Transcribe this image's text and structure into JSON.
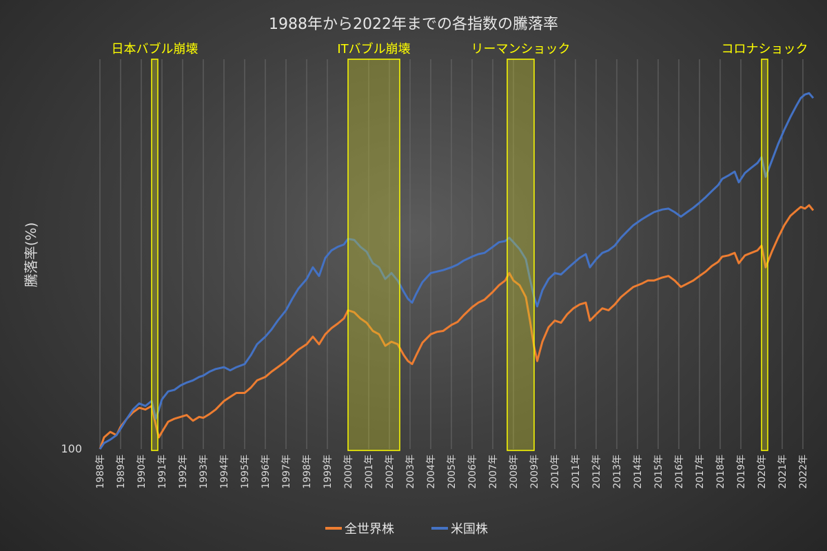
{
  "chart_data": {
    "type": "line",
    "title": "1988年から2022年までの各指数の騰落率",
    "ylabel": "騰落率(%)",
    "xlabel": "",
    "y_scale": "log",
    "y_tick_labels": [
      "100"
    ],
    "x_range": [
      1988.0,
      2022.6
    ],
    "ylim": [
      100,
      2400
    ],
    "x_tick_labels": [
      "1988年",
      "1989年",
      "1990年",
      "1991年",
      "1992年",
      "1993年",
      "1994年",
      "1995年",
      "1996年",
      "1997年",
      "1998年",
      "1999年",
      "2000年",
      "2001年",
      "2002年",
      "2003年",
      "2004年",
      "2005年",
      "2006年",
      "2007年",
      "2008年",
      "2009年",
      "2010年",
      "2011年",
      "2012年",
      "2013年",
      "2014年",
      "2015年",
      "2016年",
      "2017年",
      "2018年",
      "2019年",
      "2020年",
      "2021年",
      "2022年"
    ],
    "grid": {
      "vertical": true,
      "horizontal": false
    },
    "legend": "bottom",
    "events": [
      {
        "label": "日本バブル崩壊",
        "start": 1990.5,
        "end": 1990.8
      },
      {
        "label": "ITバブル崩壊",
        "start": 2000.0,
        "end": 2002.5
      },
      {
        "label": "リーマンショック",
        "start": 2007.7,
        "end": 2009.0
      },
      {
        "label": "コロナショック",
        "start": 2020.0,
        "end": 2020.3
      }
    ],
    "series": [
      {
        "name": "全世界株",
        "color": "#ed7d31",
        "points": [
          [
            1988.0,
            100
          ],
          [
            1988.2,
            110
          ],
          [
            1988.5,
            115
          ],
          [
            1988.8,
            112
          ],
          [
            1989.0,
            120
          ],
          [
            1989.3,
            128
          ],
          [
            1989.6,
            135
          ],
          [
            1989.9,
            140
          ],
          [
            1990.2,
            138
          ],
          [
            1990.5,
            142
          ],
          [
            1990.7,
            122
          ],
          [
            1990.85,
            110
          ],
          [
            1991.0,
            115
          ],
          [
            1991.3,
            125
          ],
          [
            1991.6,
            128
          ],
          [
            1991.9,
            130
          ],
          [
            1992.2,
            132
          ],
          [
            1992.5,
            126
          ],
          [
            1992.8,
            130
          ],
          [
            1993.0,
            129
          ],
          [
            1993.3,
            133
          ],
          [
            1993.6,
            138
          ],
          [
            1994.0,
            148
          ],
          [
            1994.3,
            153
          ],
          [
            1994.6,
            158
          ],
          [
            1995.0,
            158
          ],
          [
            1995.3,
            165
          ],
          [
            1995.6,
            175
          ],
          [
            1996.0,
            180
          ],
          [
            1996.3,
            188
          ],
          [
            1996.6,
            195
          ],
          [
            1997.0,
            205
          ],
          [
            1997.3,
            215
          ],
          [
            1997.6,
            225
          ],
          [
            1998.0,
            235
          ],
          [
            1998.3,
            250
          ],
          [
            1998.6,
            235
          ],
          [
            1998.9,
            255
          ],
          [
            1999.2,
            268
          ],
          [
            1999.5,
            278
          ],
          [
            1999.8,
            290
          ],
          [
            2000.0,
            310
          ],
          [
            2000.3,
            305
          ],
          [
            2000.6,
            290
          ],
          [
            2000.9,
            280
          ],
          [
            2001.2,
            262
          ],
          [
            2001.5,
            255
          ],
          [
            2001.8,
            232
          ],
          [
            2002.1,
            240
          ],
          [
            2002.4,
            235
          ],
          [
            2002.7,
            215
          ],
          [
            2002.9,
            205
          ],
          [
            2003.1,
            200
          ],
          [
            2003.3,
            215
          ],
          [
            2003.6,
            238
          ],
          [
            2004.0,
            255
          ],
          [
            2004.3,
            260
          ],
          [
            2004.6,
            262
          ],
          [
            2005.0,
            275
          ],
          [
            2005.3,
            282
          ],
          [
            2005.6,
            298
          ],
          [
            2006.0,
            318
          ],
          [
            2006.3,
            330
          ],
          [
            2006.6,
            338
          ],
          [
            2007.0,
            360
          ],
          [
            2007.3,
            380
          ],
          [
            2007.6,
            395
          ],
          [
            2007.8,
            420
          ],
          [
            2008.0,
            395
          ],
          [
            2008.3,
            380
          ],
          [
            2008.6,
            345
          ],
          [
            2008.8,
            285
          ],
          [
            2009.0,
            230
          ],
          [
            2009.15,
            205
          ],
          [
            2009.4,
            240
          ],
          [
            2009.7,
            270
          ],
          [
            2010.0,
            285
          ],
          [
            2010.3,
            280
          ],
          [
            2010.6,
            300
          ],
          [
            2010.9,
            315
          ],
          [
            2011.2,
            325
          ],
          [
            2011.5,
            330
          ],
          [
            2011.7,
            285
          ],
          [
            2012.0,
            300
          ],
          [
            2012.3,
            315
          ],
          [
            2012.6,
            310
          ],
          [
            2012.9,
            325
          ],
          [
            2013.2,
            345
          ],
          [
            2013.5,
            360
          ],
          [
            2013.8,
            375
          ],
          [
            2014.2,
            385
          ],
          [
            2014.5,
            395
          ],
          [
            2014.8,
            395
          ],
          [
            2015.2,
            405
          ],
          [
            2015.5,
            410
          ],
          [
            2015.8,
            395
          ],
          [
            2016.1,
            375
          ],
          [
            2016.4,
            385
          ],
          [
            2016.7,
            395
          ],
          [
            2017.0,
            410
          ],
          [
            2017.3,
            425
          ],
          [
            2017.6,
            445
          ],
          [
            2017.9,
            460
          ],
          [
            2018.1,
            480
          ],
          [
            2018.4,
            485
          ],
          [
            2018.7,
            495
          ],
          [
            2018.9,
            455
          ],
          [
            2019.2,
            485
          ],
          [
            2019.5,
            495
          ],
          [
            2019.8,
            505
          ],
          [
            2020.0,
            525
          ],
          [
            2020.2,
            440
          ],
          [
            2020.5,
            500
          ],
          [
            2020.8,
            560
          ],
          [
            2021.1,
            620
          ],
          [
            2021.4,
            670
          ],
          [
            2021.7,
            700
          ],
          [
            2021.9,
            720
          ],
          [
            2022.1,
            710
          ],
          [
            2022.3,
            730
          ],
          [
            2022.5,
            700
          ]
        ]
      },
      {
        "name": "米国株",
        "color": "#4472c4",
        "points": [
          [
            1988.0,
            100
          ],
          [
            1988.2,
            105
          ],
          [
            1988.5,
            108
          ],
          [
            1988.8,
            112
          ],
          [
            1989.0,
            118
          ],
          [
            1989.3,
            128
          ],
          [
            1989.6,
            138
          ],
          [
            1989.9,
            145
          ],
          [
            1990.2,
            142
          ],
          [
            1990.5,
            148
          ],
          [
            1990.7,
            128
          ],
          [
            1990.85,
            138
          ],
          [
            1991.0,
            150
          ],
          [
            1991.3,
            160
          ],
          [
            1991.6,
            162
          ],
          [
            1991.9,
            168
          ],
          [
            1992.2,
            172
          ],
          [
            1992.5,
            175
          ],
          [
            1992.8,
            180
          ],
          [
            1993.0,
            182
          ],
          [
            1993.3,
            188
          ],
          [
            1993.6,
            192
          ],
          [
            1994.0,
            195
          ],
          [
            1994.3,
            190
          ],
          [
            1994.6,
            195
          ],
          [
            1995.0,
            200
          ],
          [
            1995.3,
            215
          ],
          [
            1995.6,
            235
          ],
          [
            1996.0,
            250
          ],
          [
            1996.3,
            265
          ],
          [
            1996.6,
            285
          ],
          [
            1997.0,
            310
          ],
          [
            1997.3,
            340
          ],
          [
            1997.6,
            370
          ],
          [
            1998.0,
            400
          ],
          [
            1998.3,
            440
          ],
          [
            1998.6,
            410
          ],
          [
            1998.9,
            475
          ],
          [
            1999.2,
            505
          ],
          [
            1999.5,
            520
          ],
          [
            1999.8,
            530
          ],
          [
            2000.0,
            555
          ],
          [
            2000.3,
            550
          ],
          [
            2000.6,
            520
          ],
          [
            2000.9,
            500
          ],
          [
            2001.2,
            455
          ],
          [
            2001.5,
            440
          ],
          [
            2001.8,
            400
          ],
          [
            2002.1,
            420
          ],
          [
            2002.4,
            395
          ],
          [
            2002.7,
            360
          ],
          [
            2002.9,
            340
          ],
          [
            2003.1,
            330
          ],
          [
            2003.3,
            355
          ],
          [
            2003.6,
            390
          ],
          [
            2004.0,
            420
          ],
          [
            2004.3,
            425
          ],
          [
            2004.6,
            430
          ],
          [
            2005.0,
            440
          ],
          [
            2005.3,
            450
          ],
          [
            2005.6,
            465
          ],
          [
            2006.0,
            480
          ],
          [
            2006.3,
            490
          ],
          [
            2006.6,
            495
          ],
          [
            2007.0,
            520
          ],
          [
            2007.3,
            540
          ],
          [
            2007.6,
            545
          ],
          [
            2007.8,
            560
          ],
          [
            2008.0,
            540
          ],
          [
            2008.3,
            510
          ],
          [
            2008.6,
            470
          ],
          [
            2008.8,
            400
          ],
          [
            2009.0,
            345
          ],
          [
            2009.15,
            320
          ],
          [
            2009.4,
            365
          ],
          [
            2009.7,
            400
          ],
          [
            2010.0,
            420
          ],
          [
            2010.3,
            415
          ],
          [
            2010.6,
            435
          ],
          [
            2010.9,
            455
          ],
          [
            2011.2,
            475
          ],
          [
            2011.5,
            490
          ],
          [
            2011.7,
            440
          ],
          [
            2012.0,
            470
          ],
          [
            2012.3,
            495
          ],
          [
            2012.6,
            505
          ],
          [
            2012.9,
            525
          ],
          [
            2013.2,
            560
          ],
          [
            2013.5,
            590
          ],
          [
            2013.8,
            620
          ],
          [
            2014.2,
            650
          ],
          [
            2014.5,
            670
          ],
          [
            2014.8,
            690
          ],
          [
            2015.2,
            705
          ],
          [
            2015.5,
            710
          ],
          [
            2015.8,
            690
          ],
          [
            2016.1,
            665
          ],
          [
            2016.4,
            690
          ],
          [
            2016.7,
            715
          ],
          [
            2017.0,
            745
          ],
          [
            2017.3,
            780
          ],
          [
            2017.6,
            820
          ],
          [
            2017.9,
            860
          ],
          [
            2018.1,
            905
          ],
          [
            2018.4,
            930
          ],
          [
            2018.7,
            960
          ],
          [
            2018.9,
            880
          ],
          [
            2019.2,
            950
          ],
          [
            2019.5,
            990
          ],
          [
            2019.8,
            1030
          ],
          [
            2020.0,
            1080
          ],
          [
            2020.2,
            920
          ],
          [
            2020.5,
            1050
          ],
          [
            2020.8,
            1200
          ],
          [
            2021.1,
            1350
          ],
          [
            2021.4,
            1500
          ],
          [
            2021.7,
            1650
          ],
          [
            2021.9,
            1750
          ],
          [
            2022.1,
            1800
          ],
          [
            2022.3,
            1820
          ],
          [
            2022.5,
            1750
          ]
        ]
      }
    ]
  }
}
